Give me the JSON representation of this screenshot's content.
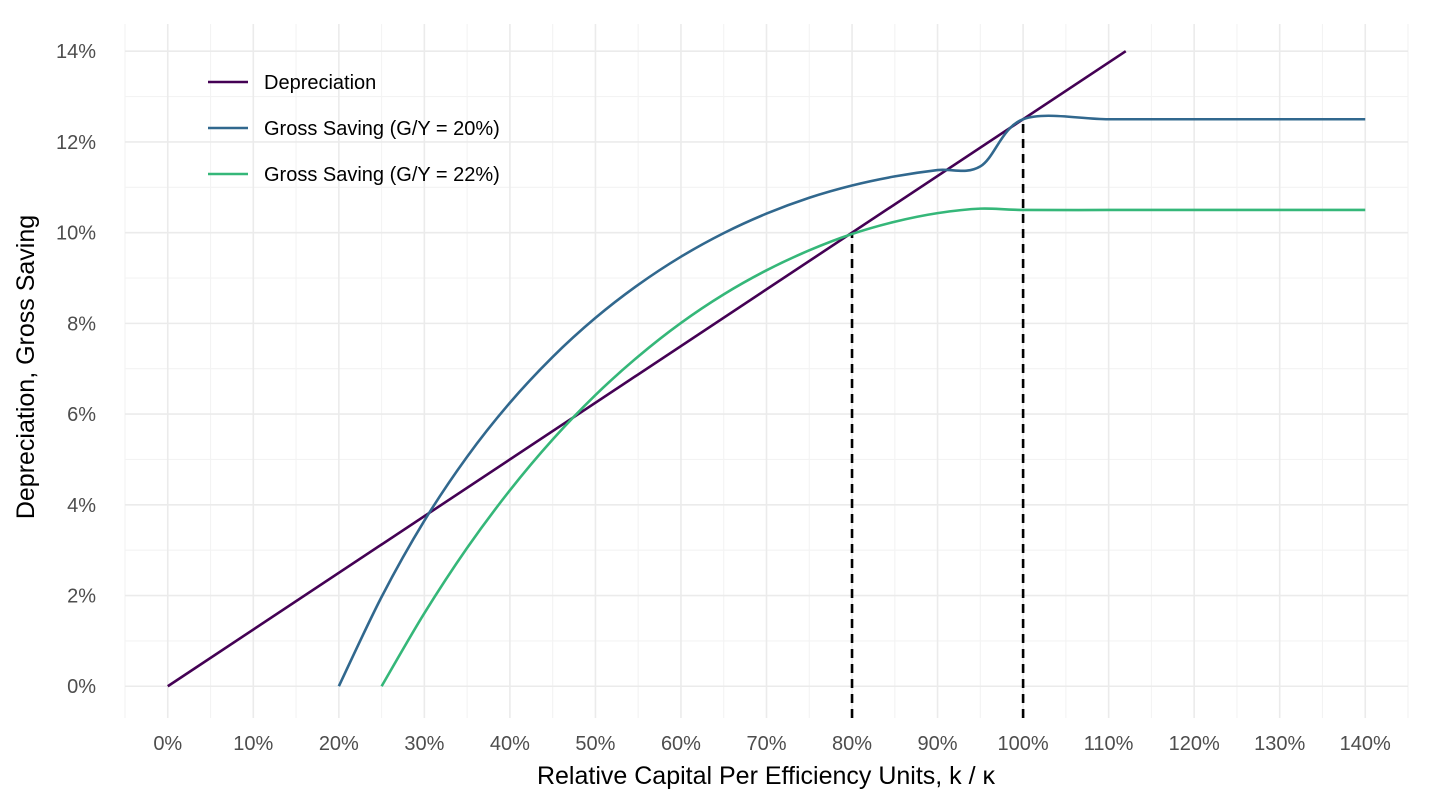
{
  "chart_data": {
    "type": "line",
    "title": "",
    "xlabel": "Relative Capital Per Efficiency Units, k / κ",
    "ylabel": "Depreciation, Gross Saving",
    "xlim": [
      -0.05,
      1.45
    ],
    "ylim": [
      -0.007,
      0.146
    ],
    "x_ticks": [
      0,
      0.1,
      0.2,
      0.3,
      0.4,
      0.5,
      0.6,
      0.7,
      0.8,
      0.9,
      1.0,
      1.1,
      1.2,
      1.3,
      1.4
    ],
    "x_tick_labels": [
      "0%",
      "10%",
      "20%",
      "30%",
      "40%",
      "50%",
      "60%",
      "70%",
      "80%",
      "90%",
      "100%",
      "110%",
      "120%",
      "130%",
      "140%"
    ],
    "y_ticks": [
      0,
      0.02,
      0.04,
      0.06,
      0.08,
      0.1,
      0.12,
      0.14
    ],
    "y_tick_labels": [
      "0%",
      "2%",
      "4%",
      "6%",
      "8%",
      "10%",
      "12%",
      "14%"
    ],
    "grid": true,
    "legend_position": "top-left",
    "series": [
      {
        "name": "Depreciation",
        "color": "#440154",
        "x": [
          0,
          1.12
        ],
        "y": [
          0,
          0.14
        ]
      },
      {
        "name": "Gross Saving (G/Y = 20%)",
        "color": "#31688e",
        "x": [
          0.2,
          0.25,
          0.3,
          0.35,
          0.4,
          0.45,
          0.5,
          0.55,
          0.6,
          0.65,
          0.7,
          0.75,
          0.8,
          0.85,
          0.9,
          0.95,
          1.0,
          1.1,
          1.2,
          1.3,
          1.4
        ],
        "y": [
          0,
          0.0197,
          0.0365,
          0.0506,
          0.0625,
          0.0726,
          0.0812,
          0.0885,
          0.0947,
          0.0999,
          0.1042,
          0.1077,
          0.1104,
          0.1124,
          0.1138,
          0.1146,
          0.125,
          0.125,
          0.125,
          0.125,
          0.125
        ]
      },
      {
        "name": "Gross Saving (G/Y = 22%)",
        "color": "#35b779",
        "x": [
          0.25,
          0.3,
          0.35,
          0.4,
          0.45,
          0.5,
          0.55,
          0.6,
          0.65,
          0.7,
          0.75,
          0.8,
          0.85,
          0.9,
          0.95,
          1.0,
          1.1,
          1.2,
          1.3,
          1.4
        ],
        "y": [
          0,
          0.0161,
          0.0305,
          0.0432,
          0.0544,
          0.0642,
          0.0727,
          0.0801,
          0.0864,
          0.0917,
          0.0961,
          0.0997,
          0.1024,
          0.1043,
          0.1053,
          0.105,
          0.105,
          0.105,
          0.105,
          0.105
        ]
      }
    ],
    "reference_lines": [
      {
        "x": 0.8,
        "y": 0.1,
        "style": "dashed",
        "color": "#000000"
      },
      {
        "x": 1.0,
        "y": 0.125,
        "style": "dashed",
        "color": "#000000"
      }
    ]
  }
}
